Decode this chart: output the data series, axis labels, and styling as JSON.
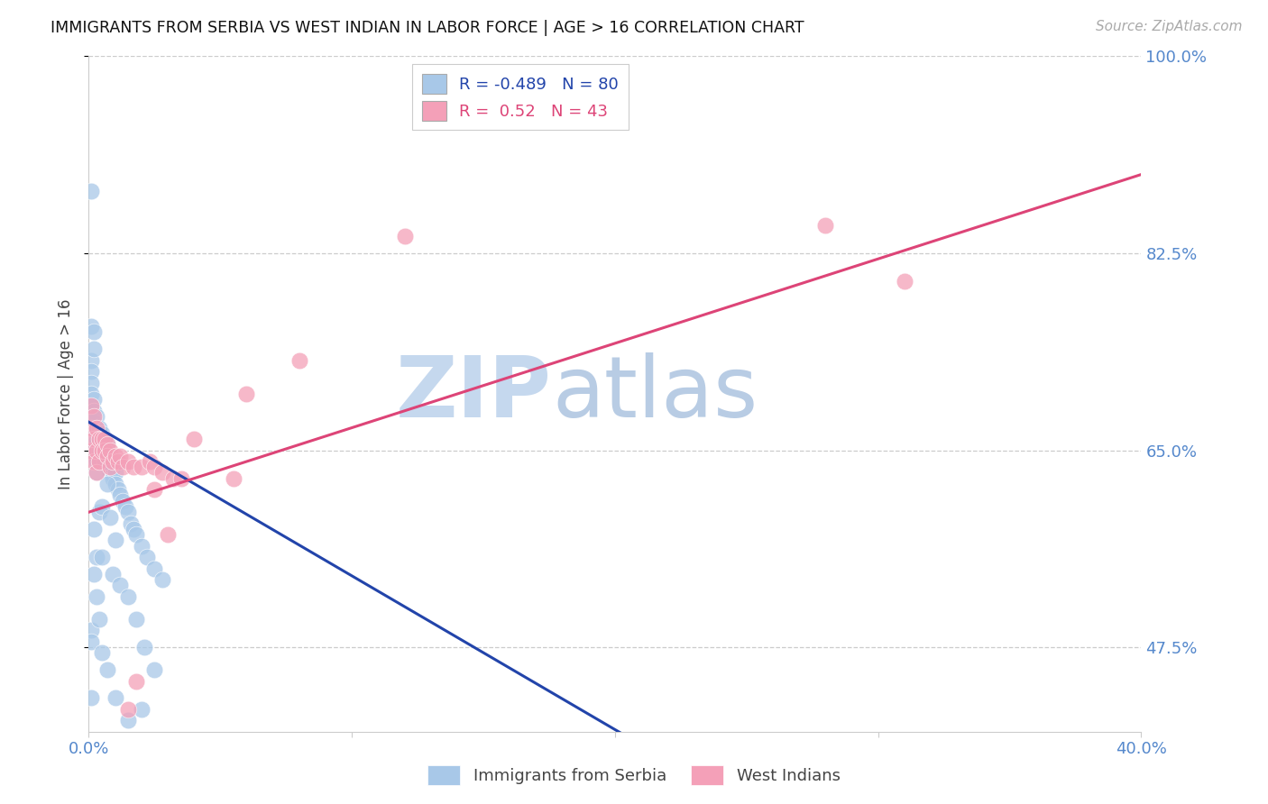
{
  "title": "IMMIGRANTS FROM SERBIA VS WEST INDIAN IN LABOR FORCE | AGE > 16 CORRELATION CHART",
  "source": "Source: ZipAtlas.com",
  "ylabel": "In Labor Force | Age > 16",
  "xlim": [
    0.0,
    0.4
  ],
  "ylim": [
    0.4,
    1.0
  ],
  "serbia_R": -0.489,
  "serbia_N": 80,
  "westindian_R": 0.52,
  "westindian_N": 43,
  "serbia_color": "#a8c8e8",
  "westindian_color": "#f4a0b8",
  "serbia_line_color": "#2244aa",
  "westindian_line_color": "#dd4477",
  "serbia_line_x": [
    0.0,
    0.205
  ],
  "serbia_line_y": [
    0.675,
    0.395
  ],
  "westindian_line_x": [
    0.0,
    0.4
  ],
  "westindian_line_y": [
    0.595,
    0.895
  ],
  "serbia_scatter_x": [
    0.001,
    0.001,
    0.001,
    0.001,
    0.001,
    0.001,
    0.001,
    0.002,
    0.002,
    0.002,
    0.002,
    0.002,
    0.002,
    0.003,
    0.003,
    0.003,
    0.003,
    0.003,
    0.004,
    0.004,
    0.004,
    0.004,
    0.005,
    0.005,
    0.005,
    0.006,
    0.006,
    0.006,
    0.007,
    0.007,
    0.008,
    0.008,
    0.009,
    0.009,
    0.01,
    0.01,
    0.011,
    0.012,
    0.013,
    0.014,
    0.015,
    0.016,
    0.017,
    0.018,
    0.02,
    0.022,
    0.025,
    0.028,
    0.001,
    0.001,
    0.002,
    0.002,
    0.002,
    0.003,
    0.003,
    0.004,
    0.004,
    0.005,
    0.005,
    0.006,
    0.007,
    0.008,
    0.009,
    0.01,
    0.012,
    0.015,
    0.018,
    0.021,
    0.025,
    0.001,
    0.001,
    0.001,
    0.002,
    0.003,
    0.004,
    0.005,
    0.007,
    0.01,
    0.015,
    0.02
  ],
  "serbia_scatter_y": [
    0.73,
    0.72,
    0.71,
    0.7,
    0.69,
    0.68,
    0.67,
    0.695,
    0.685,
    0.675,
    0.665,
    0.655,
    0.645,
    0.68,
    0.67,
    0.66,
    0.65,
    0.64,
    0.67,
    0.66,
    0.65,
    0.64,
    0.665,
    0.655,
    0.645,
    0.66,
    0.65,
    0.64,
    0.655,
    0.645,
    0.64,
    0.63,
    0.635,
    0.625,
    0.63,
    0.62,
    0.615,
    0.61,
    0.605,
    0.6,
    0.595,
    0.585,
    0.58,
    0.575,
    0.565,
    0.555,
    0.545,
    0.535,
    0.88,
    0.76,
    0.755,
    0.74,
    0.58,
    0.63,
    0.555,
    0.64,
    0.595,
    0.6,
    0.555,
    0.64,
    0.62,
    0.59,
    0.54,
    0.57,
    0.53,
    0.52,
    0.5,
    0.475,
    0.455,
    0.49,
    0.48,
    0.43,
    0.54,
    0.52,
    0.5,
    0.47,
    0.455,
    0.43,
    0.41,
    0.42
  ],
  "westindian_scatter_x": [
    0.001,
    0.001,
    0.001,
    0.002,
    0.002,
    0.002,
    0.003,
    0.003,
    0.003,
    0.004,
    0.004,
    0.005,
    0.005,
    0.006,
    0.006,
    0.007,
    0.007,
    0.008,
    0.008,
    0.009,
    0.01,
    0.011,
    0.012,
    0.013,
    0.015,
    0.017,
    0.02,
    0.023,
    0.025,
    0.028,
    0.032,
    0.035,
    0.28,
    0.31,
    0.12,
    0.08,
    0.06,
    0.04,
    0.055,
    0.03,
    0.025,
    0.018,
    0.015
  ],
  "westindian_scatter_y": [
    0.69,
    0.67,
    0.65,
    0.68,
    0.66,
    0.64,
    0.67,
    0.65,
    0.63,
    0.66,
    0.64,
    0.66,
    0.65,
    0.66,
    0.65,
    0.655,
    0.645,
    0.65,
    0.635,
    0.64,
    0.645,
    0.64,
    0.645,
    0.635,
    0.64,
    0.635,
    0.635,
    0.64,
    0.635,
    0.63,
    0.625,
    0.625,
    0.85,
    0.8,
    0.84,
    0.73,
    0.7,
    0.66,
    0.625,
    0.575,
    0.615,
    0.445,
    0.42
  ],
  "yticks": [
    0.475,
    0.65,
    0.825,
    1.0
  ],
  "ytick_labels_right": [
    "47.5%",
    "65.0%",
    "82.5%",
    "100.0%"
  ],
  "xticks": [
    0.0,
    0.1,
    0.2,
    0.3,
    0.4
  ],
  "xtick_labels": [
    "0.0%",
    "",
    "",
    "",
    "40.0%"
  ],
  "grid_color": "#cccccc",
  "axis_label_color": "#5588cc",
  "background_color": "#ffffff",
  "watermark_zip_color": "#c5d8ee",
  "watermark_atlas_color": "#b8cce4"
}
